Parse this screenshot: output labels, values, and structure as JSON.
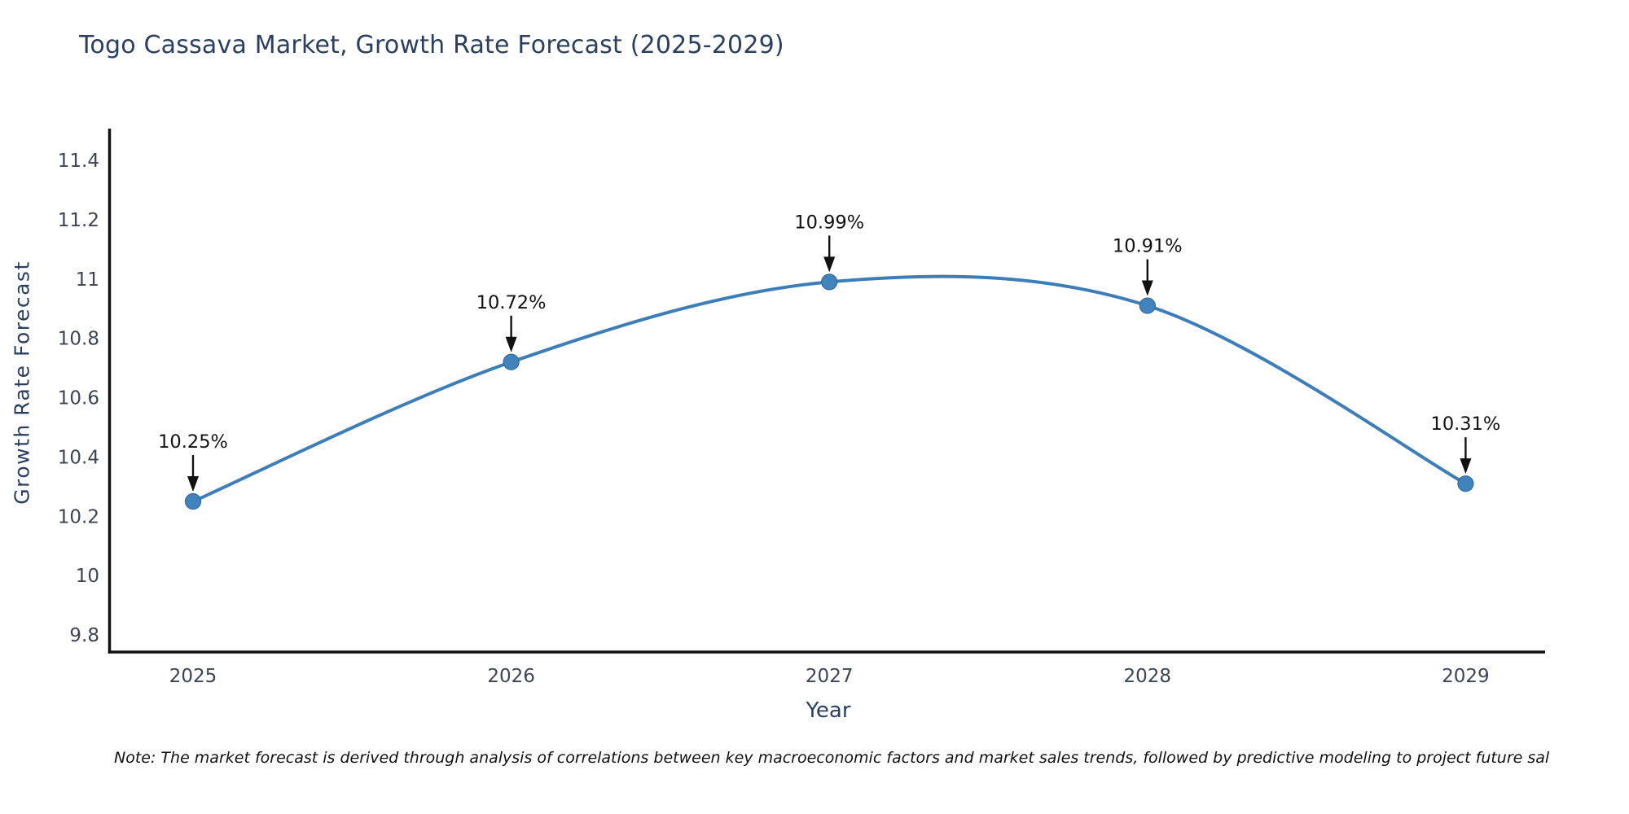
{
  "title": "Togo Cassava Market, Growth Rate Forecast (2025-2029)",
  "note": "Note: The market forecast is derived through analysis of correlations between key macroeconomic factors and market sales trends, followed by predictive modeling to project future sal",
  "chart_data": {
    "type": "line",
    "title": "Togo Cassava Market, Growth Rate Forecast (2025-2029)",
    "categories": [
      "2025",
      "2026",
      "2027",
      "2028",
      "2029"
    ],
    "values": [
      10.25,
      10.72,
      10.99,
      10.91,
      10.31
    ],
    "point_labels": [
      "10.25%",
      "10.72%",
      "10.99%",
      "10.91%",
      "10.31%"
    ],
    "xlabel": "Year",
    "ylabel": "Growth Rate Forecast",
    "yticks": [
      9.8,
      10,
      10.2,
      10.4,
      10.6,
      10.8,
      11,
      11.2,
      11.4
    ],
    "ylim": [
      9.74,
      11.51
    ],
    "grid": false,
    "legend": "none",
    "smooth": true,
    "annotations": "arrow-down-to-point",
    "colors": {
      "line": "#3d7eb8",
      "marker": "#4184bd",
      "marker_edge": "#34699b",
      "annotation_text": "#111111",
      "axis_line": "#101112",
      "tick_label": "#3d4554",
      "axis_label": "#2a3f5f",
      "title": "#2b3f5e"
    }
  }
}
